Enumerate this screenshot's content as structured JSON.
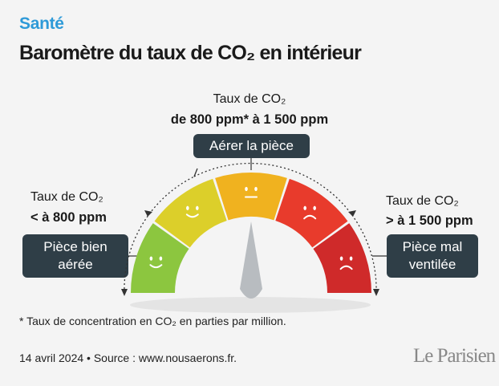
{
  "header": {
    "kicker": "Santé",
    "title": "Baromètre du taux de CO₂ en intérieur"
  },
  "gauge": {
    "top": {
      "label": "Taux de CO₂",
      "range": "de 800 ppm* à 1 500 ppm",
      "advice": "Aérer la pièce"
    },
    "left": {
      "label": "Taux de CO₂",
      "range": "< à 800 ppm",
      "advice_line1": "Pièce bien",
      "advice_line2": "aérée"
    },
    "right": {
      "label": "Taux de CO₂",
      "range": "> à 1 500 ppm",
      "advice_line1": "Pièce mal",
      "advice_line2": "ventilée"
    },
    "segments": [
      {
        "color": "#8cc63f",
        "face": "happy"
      },
      {
        "color": "#dccf2a",
        "face": "happy"
      },
      {
        "color": "#f0b21f",
        "face": "neutral"
      },
      {
        "color": "#e83b2c",
        "face": "sad"
      },
      {
        "color": "#cf2a2a",
        "face": "sad"
      }
    ],
    "needle_color": "#b8bcc0"
  },
  "footnote": "* Taux de concentration en CO₂ en parties par million.",
  "source": "14 avril 2024 • Source : www.nousaerons.fr.",
  "logo": "Le Parisien"
}
